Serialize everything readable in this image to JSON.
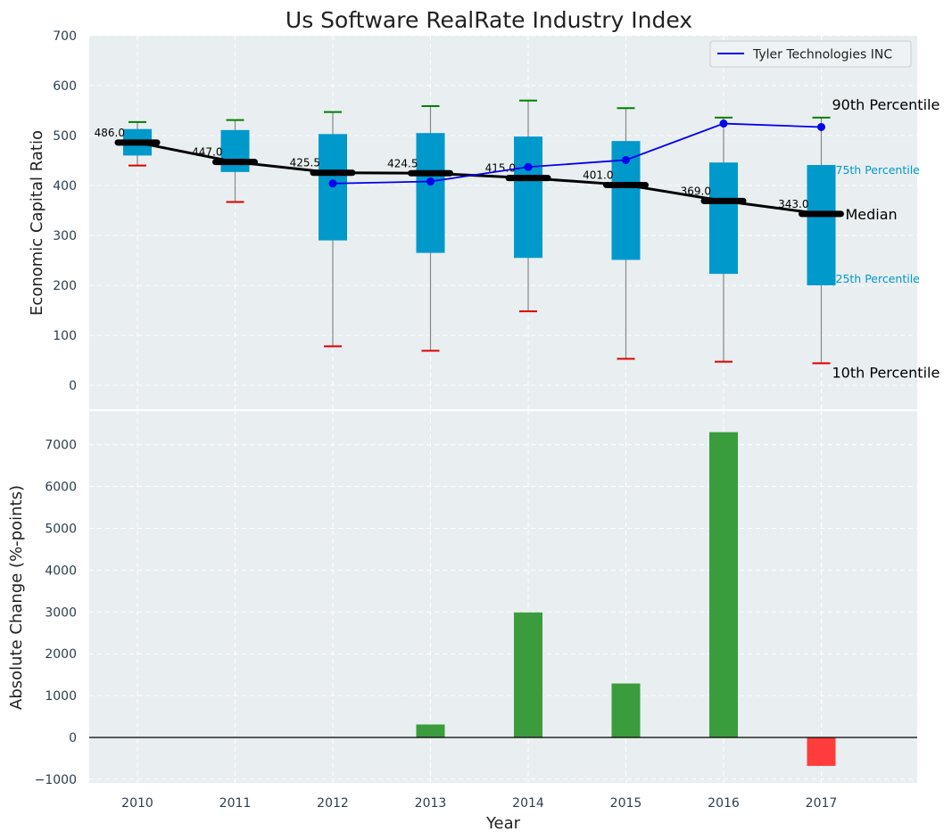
{
  "title": "Us Software RealRate Industry Index",
  "colors": {
    "panel_bg": "#e9eef0",
    "box": "#0099cc",
    "median_line": "#000000",
    "company_line": "#0000ee",
    "whisker_high": "#008000",
    "whisker_low": "#dd0000",
    "bar_positive": "#3a9c3d",
    "bar_negative": "#ff3c3c",
    "tick_text": "#2c3e50",
    "grid": "#ffffff"
  },
  "chart_data": [
    {
      "type": "box",
      "ylabel": "Economic Capital Ratio",
      "ylim": [
        -50,
        700
      ],
      "yticks": [
        0,
        100,
        200,
        300,
        400,
        500,
        600,
        700
      ],
      "years": [
        "2010",
        "2011",
        "2012",
        "2013",
        "2014",
        "2015",
        "2016",
        "2017"
      ],
      "p10": [
        440,
        367,
        78,
        69,
        148,
        53,
        47,
        44
      ],
      "p25": [
        460,
        427,
        290,
        265,
        255,
        251,
        223,
        200
      ],
      "median": [
        486.0,
        447.0,
        425.5,
        424.5,
        415.0,
        401.0,
        369.0,
        343.0
      ],
      "median_labels": [
        "486.0",
        "447.0",
        "425.5",
        "424.5",
        "415.0",
        "401.0",
        "369.0",
        "343.0"
      ],
      "p75": [
        513,
        511,
        503,
        505,
        498,
        489,
        446,
        441
      ],
      "p90": [
        527,
        531,
        547,
        559,
        570,
        555,
        536,
        536
      ],
      "company": {
        "name": "Tyler Technologies INC",
        "values": [
          null,
          null,
          404,
          408,
          437,
          451,
          524,
          517
        ]
      },
      "annotations": {
        "p90": "90th Percentile",
        "p75": "75th Percentile",
        "median": "Median",
        "p25": "25th Percentile",
        "p10": "10th Percentile"
      },
      "legend": "top-right"
    },
    {
      "type": "bar",
      "xlabel": "Year",
      "ylabel": "Absolute Change (%-points)",
      "ylim": [
        -1050,
        7800
      ],
      "yticks": [
        -1000,
        0,
        1000,
        2000,
        3000,
        4000,
        5000,
        6000,
        7000
      ],
      "ytick_labels": [
        "−1000",
        "0",
        "1000",
        "2000",
        "3000",
        "4000",
        "5000",
        "6000",
        "7000"
      ],
      "categories": [
        "2010",
        "2011",
        "2012",
        "2013",
        "2014",
        "2015",
        "2016",
        "2017"
      ],
      "values": [
        0,
        0,
        0,
        310,
        2990,
        1290,
        7300,
        -680
      ]
    }
  ]
}
